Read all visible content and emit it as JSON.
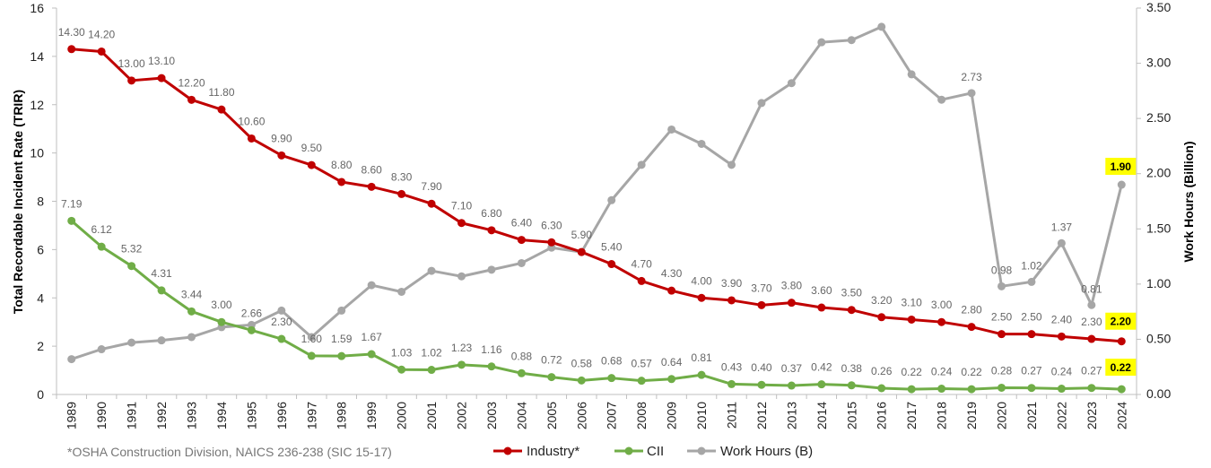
{
  "chart_data": {
    "type": "line",
    "categories": [
      "1989",
      "1990",
      "1991",
      "1992",
      "1993",
      "1994",
      "1995",
      "1996",
      "1997",
      "1998",
      "1999",
      "2000",
      "2001",
      "2002",
      "2003",
      "2004",
      "2005",
      "2006",
      "2007",
      "2008",
      "2009",
      "2010",
      "2011",
      "2012",
      "2013",
      "2014",
      "2015",
      "2016",
      "2017",
      "2018",
      "2019",
      "2020",
      "2021",
      "2022",
      "2023",
      "2024"
    ],
    "ylabel": "Total Recordable Incident Rate (TRIR)",
    "y2label": "Work Hours (Billion)",
    "ylim": [
      0,
      16
    ],
    "yticks": [
      "0",
      "2",
      "4",
      "6",
      "8",
      "10",
      "12",
      "14",
      "16"
    ],
    "y2lim": [
      0,
      3.5
    ],
    "y2ticks": [
      "0.00",
      "0.50",
      "1.00",
      "1.50",
      "2.00",
      "2.50",
      "3.00",
      "3.50"
    ],
    "legend_position": "bottom",
    "grid": false,
    "footnote": "*OSHA Construction Division, NAICS 236-238 (SIC 15-17)",
    "series": [
      {
        "name": "Industry*",
        "axis": "left",
        "color": "#c00000",
        "values": [
          14.3,
          14.2,
          13.0,
          13.1,
          12.2,
          11.8,
          10.6,
          9.9,
          9.5,
          8.8,
          8.6,
          8.3,
          7.9,
          7.1,
          6.8,
          6.4,
          6.3,
          5.9,
          5.4,
          4.7,
          4.3,
          4.0,
          3.9,
          3.7,
          3.8,
          3.6,
          3.5,
          3.2,
          3.1,
          3.0,
          2.8,
          2.5,
          2.5,
          2.4,
          2.3,
          2.2
        ],
        "labels": [
          "14.30",
          "14.20",
          "13.00",
          "13.10",
          "12.20",
          "11.80",
          "10.60",
          "9.90",
          "9.50",
          "8.80",
          "8.60",
          "8.30",
          "7.90",
          "7.10",
          "6.80",
          "6.40",
          "6.30",
          "5.90",
          "5.40",
          "4.70",
          "4.30",
          "4.00",
          "3.90",
          "3.70",
          "3.80",
          "3.60",
          "3.50",
          "3.20",
          "3.10",
          "3.00",
          "2.80",
          "2.50",
          "2.50",
          "2.40",
          "2.30",
          "2.20"
        ]
      },
      {
        "name": "CII",
        "axis": "left",
        "color": "#70ad47",
        "values": [
          7.19,
          6.12,
          5.32,
          4.31,
          3.44,
          3.0,
          2.66,
          2.3,
          1.6,
          1.59,
          1.67,
          1.03,
          1.02,
          1.23,
          1.16,
          0.88,
          0.72,
          0.58,
          0.68,
          0.57,
          0.64,
          0.81,
          0.43,
          0.4,
          0.37,
          0.42,
          0.38,
          0.26,
          0.22,
          0.24,
          0.22,
          0.28,
          0.27,
          0.24,
          0.27,
          0.22
        ],
        "labels": [
          "7.19",
          "6.12",
          "5.32",
          "4.31",
          "3.44",
          "3.00",
          "2.66",
          "2.30",
          "1.60",
          "1.59",
          "1.67",
          "1.03",
          "1.02",
          "1.23",
          "1.16",
          "0.88",
          "0.72",
          "0.58",
          "0.68",
          "0.57",
          "0.64",
          "0.81",
          "0.43",
          "0.40",
          "0.37",
          "0.42",
          "0.38",
          "0.26",
          "0.22",
          "0.24",
          "0.22",
          "0.28",
          "0.27",
          "0.24",
          "0.27",
          "0.22"
        ]
      },
      {
        "name": "Work Hours (B)",
        "axis": "right",
        "color": "#a6a6a6",
        "values": [
          0.32,
          0.41,
          0.47,
          0.49,
          0.52,
          0.61,
          0.63,
          0.76,
          0.52,
          0.76,
          0.99,
          0.93,
          1.12,
          1.07,
          1.13,
          1.19,
          1.33,
          1.29,
          1.76,
          2.08,
          2.4,
          2.27,
          2.08,
          2.64,
          2.82,
          3.19,
          3.21,
          3.33,
          2.9,
          2.67,
          2.73,
          0.98,
          1.02,
          1.37,
          0.81,
          1.9
        ],
        "labels": {
          "19": "",
          "30": "2.73",
          "31": "0.98",
          "32": "1.02",
          "33": "1.37",
          "34": "0.81",
          "35": "1.90"
        }
      }
    ],
    "highlight_labels": [
      "1.90",
      "2.20",
      "0.22"
    ]
  }
}
